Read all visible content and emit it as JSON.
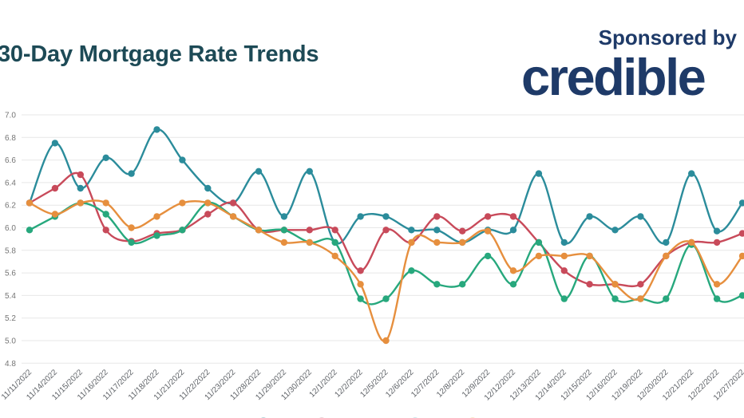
{
  "header": {
    "title": "30-Day Mortgage Rate Trends",
    "sponsored_by": "Sponsored by",
    "brand": "credible"
  },
  "style_colors": {
    "title_color": "#1d4a56",
    "brand_color": "#1e3a68",
    "grid_color": "#e7e7e7",
    "ytick_color": "#757575",
    "xtick_color": "#5f6368"
  },
  "chart_data": {
    "type": "line",
    "title": "30-Day Mortgage Rate Trends",
    "grid": true,
    "ylim": [
      4.8,
      7.0
    ],
    "y_ticks": [
      "7.0",
      "6.8",
      "6.6",
      "6.4",
      "6.2",
      "6.0",
      "5.8",
      "5.6",
      "5.4",
      "5.2",
      "5.0",
      "4.8"
    ],
    "x_labels": [
      "11/11/2022",
      "11/14/2022",
      "11/15/2022",
      "11/16/2022",
      "11/17/2022",
      "11/18/2022",
      "11/21/2022",
      "11/22/2022",
      "11/23/2022",
      "11/28/2022",
      "11/29/2022",
      "11/30/2022",
      "12/1/2022",
      "12/2/2022",
      "12/5/2022",
      "12/6/2022",
      "12/7/2022",
      "12/8/2022",
      "12/9/2022",
      "12/12/2022",
      "12/13/2022",
      "12/14/2022",
      "12/15/2022",
      "12/16/2022",
      "12/19/2022",
      "12/20/2022",
      "12/21/2022",
      "12/22/2022",
      "12/27/2022"
    ],
    "series": [
      {
        "name": "teal-line",
        "color": "#2b8c9b",
        "values": [
          6.22,
          6.75,
          6.35,
          6.62,
          6.48,
          6.87,
          6.6,
          6.35,
          6.22,
          6.5,
          6.1,
          6.5,
          5.87,
          6.1,
          6.1,
          5.98,
          5.98,
          5.87,
          5.98,
          5.98,
          6.48,
          5.87,
          6.1,
          5.98,
          6.1,
          5.87,
          6.48,
          5.97,
          6.22
        ]
      },
      {
        "name": "red-line",
        "color": "#c84a5a",
        "values": [
          6.22,
          6.35,
          6.47,
          5.98,
          5.88,
          5.95,
          5.98,
          6.12,
          6.22,
          5.98,
          5.98,
          5.98,
          5.98,
          5.62,
          5.98,
          5.87,
          6.1,
          5.97,
          6.1,
          6.1,
          5.87,
          5.62,
          5.5,
          5.5,
          5.5,
          5.75,
          5.87,
          5.87,
          5.95
        ]
      },
      {
        "name": "green-line",
        "color": "#27a87d",
        "values": [
          5.98,
          6.1,
          6.22,
          6.12,
          5.87,
          5.93,
          5.98,
          6.22,
          6.1,
          5.98,
          5.98,
          5.87,
          5.87,
          5.37,
          5.37,
          5.62,
          5.5,
          5.5,
          5.75,
          5.5,
          5.87,
          5.37,
          5.75,
          5.37,
          5.37,
          5.37,
          5.85,
          5.37,
          5.4
        ]
      },
      {
        "name": "orange-line",
        "color": "#e68f3e",
        "values": [
          6.22,
          6.12,
          6.22,
          6.22,
          6.0,
          6.1,
          6.22,
          6.22,
          6.1,
          5.98,
          5.87,
          5.87,
          5.75,
          5.5,
          5.0,
          5.87,
          5.87,
          5.87,
          5.97,
          5.62,
          5.75,
          5.75,
          5.75,
          5.5,
          5.37,
          5.75,
          5.87,
          5.5,
          5.75
        ]
      }
    ],
    "legend_fragments_at_bottom_edge": [
      {
        "x": 330,
        "color": "#2b8c9b"
      },
      {
        "x": 403,
        "color": "#b9868c"
      },
      {
        "x": 520,
        "color": "#6ebdcb"
      },
      {
        "x": 592,
        "color": "#ecc06a"
      }
    ]
  }
}
